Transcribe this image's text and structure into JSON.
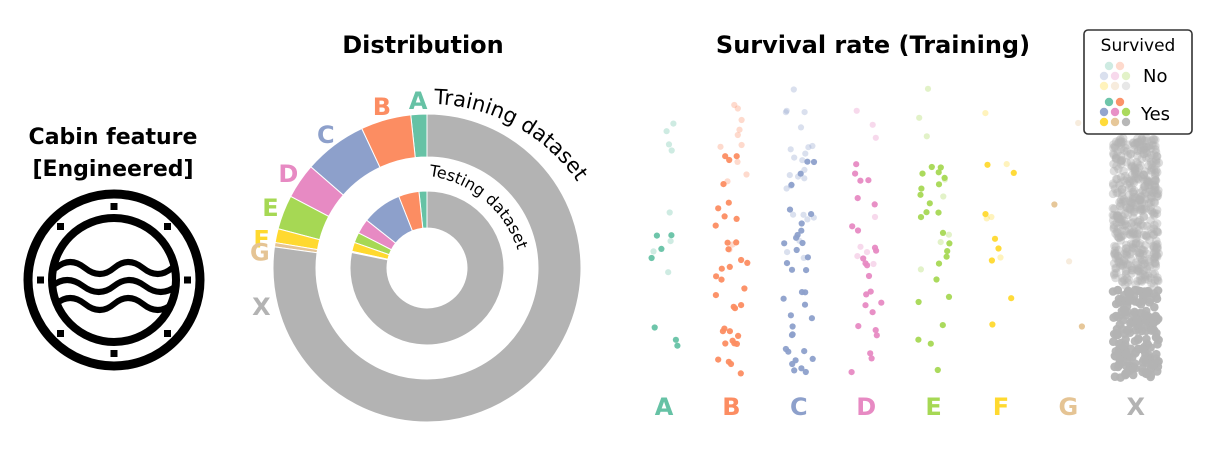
{
  "feature": {
    "title_line1": "Cabin feature",
    "title_line2": "[Engineered]",
    "icon": "porthole-icon"
  },
  "chart_data": [
    {
      "type": "donut",
      "title": "Distribution",
      "categories": [
        "A",
        "B",
        "C",
        "D",
        "E",
        "F",
        "G",
        "X"
      ],
      "colors": {
        "A": "#66c2a5",
        "B": "#fc8d62",
        "C": "#8da0cb",
        "D": "#e78ac3",
        "E": "#a6d854",
        "F": "#ffd92f",
        "G": "#e5c494",
        "X": "#b3b3b3"
      },
      "series": [
        {
          "name": "Training dataset",
          "values": [
            15,
            47,
            59,
            33,
            32,
            13,
            4,
            687
          ]
        },
        {
          "name": "Testing dataset",
          "values": [
            7,
            18,
            35,
            13,
            9,
            8,
            1,
            327
          ]
        }
      ]
    },
    {
      "type": "scatter",
      "title": "Survival rate (Training)",
      "categories": [
        "A",
        "B",
        "C",
        "D",
        "E",
        "F",
        "G",
        "X"
      ],
      "legend": {
        "title": "Survived",
        "entries": [
          "No",
          "Yes"
        ],
        "placement": "top-right"
      },
      "counts": {
        "no": [
          8,
          12,
          24,
          8,
          8,
          5,
          2,
          481
        ],
        "yes": [
          7,
          35,
          35,
          25,
          24,
          8,
          2,
          206
        ]
      }
    }
  ]
}
